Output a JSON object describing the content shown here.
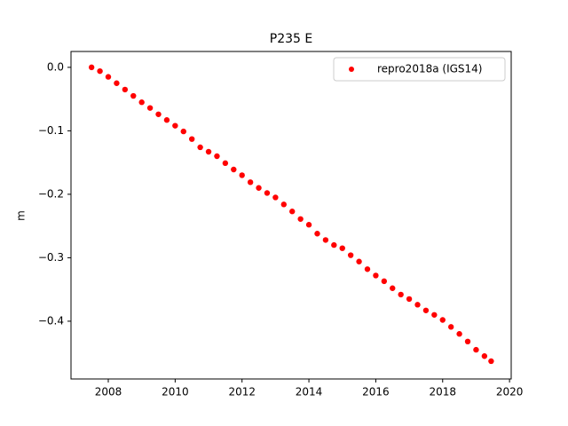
{
  "chart_data": {
    "type": "scatter",
    "title": "P235 E",
    "y_label": "m",
    "x": [
      2007.5,
      2007.75,
      2008.0,
      2008.25,
      2008.5,
      2008.75,
      2009.0,
      2009.25,
      2009.5,
      2009.75,
      2010.0,
      2010.25,
      2010.5,
      2010.75,
      2011.0,
      2011.25,
      2011.5,
      2011.75,
      2012.0,
      2012.25,
      2012.5,
      2012.75,
      2013.0,
      2013.25,
      2013.5,
      2013.75,
      2014.0,
      2014.25,
      2014.5,
      2014.75,
      2015.0,
      2015.25,
      2015.5,
      2015.75,
      2016.0,
      2016.25,
      2016.5,
      2016.75,
      2017.0,
      2017.25,
      2017.5,
      2017.75,
      2018.0,
      2018.25,
      2018.5,
      2018.75,
      2019.0,
      2019.25,
      2019.45
    ],
    "series": [
      {
        "name": "repro2018a (IGS14)",
        "color": "#ff0000",
        "values": [
          0.0,
          -0.006,
          -0.015,
          -0.025,
          -0.035,
          -0.045,
          -0.055,
          -0.064,
          -0.074,
          -0.083,
          -0.092,
          -0.101,
          -0.113,
          -0.126,
          -0.133,
          -0.14,
          -0.151,
          -0.161,
          -0.17,
          -0.181,
          -0.19,
          -0.198,
          -0.205,
          -0.216,
          -0.227,
          -0.239,
          -0.248,
          -0.262,
          -0.272,
          -0.28,
          -0.285,
          -0.296,
          -0.306,
          -0.318,
          -0.328,
          -0.337,
          -0.348,
          -0.358,
          -0.365,
          -0.374,
          -0.383,
          -0.39,
          -0.398,
          -0.409,
          -0.42,
          -0.432,
          -0.445,
          -0.455,
          -0.463
        ]
      }
    ],
    "xlim": [
      2006.885,
      2020.05
    ],
    "xticks": [
      2008,
      2010,
      2012,
      2014,
      2016,
      2018,
      2020
    ],
    "ylim": [
      -0.491,
      0.025
    ],
    "yticks": [
      {
        "value": 0.0,
        "label": "0.0"
      },
      {
        "value": -0.1,
        "label": "−0.1"
      },
      {
        "value": -0.2,
        "label": "−0.2"
      },
      {
        "value": -0.3,
        "label": "−0.3"
      },
      {
        "value": -0.4,
        "label": "−0.4"
      }
    ],
    "grid": false,
    "legend": "upper right"
  }
}
